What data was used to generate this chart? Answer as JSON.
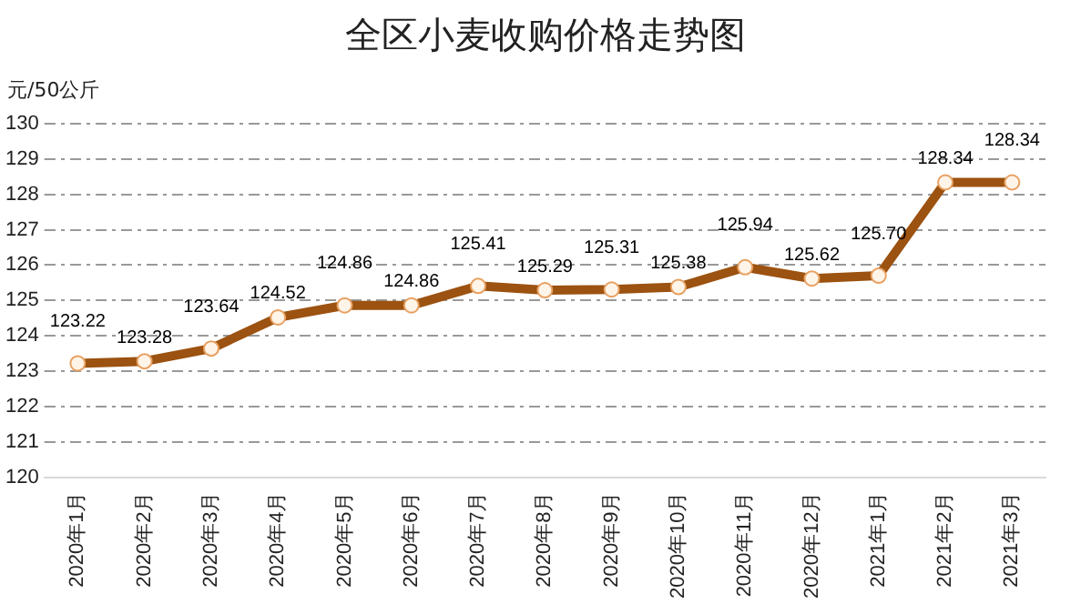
{
  "chart_data": {
    "type": "line",
    "title": "全区小麦收购价格走势图",
    "ylabel": "元/50公斤",
    "categories": [
      "2020年1月",
      "2020年2月",
      "2020年3月",
      "2020年4月",
      "2020年5月",
      "2020年6月",
      "2020年7月",
      "2020年8月",
      "2020年9月",
      "2020年10月",
      "2020年11月",
      "2020年12月",
      "2021年1月",
      "2021年2月",
      "2021年3月"
    ],
    "series": [
      {
        "color": "#9c5210",
        "values": [
          123.22,
          123.28,
          123.64,
          124.52,
          124.86,
          124.86,
          125.41,
          125.29,
          125.31,
          125.38,
          125.94,
          125.62,
          125.7,
          128.34,
          128.34
        ]
      }
    ],
    "ylim": [
      120,
      130
    ],
    "yticks": [
      120,
      121,
      122,
      123,
      124,
      125,
      126,
      127,
      128,
      129,
      130
    ],
    "value_labels": [
      "123.22",
      "123.28",
      "123.64",
      "124.52",
      "124.86",
      "124.86",
      "125.41",
      "125.29",
      "125.31",
      "125.38",
      "125.94",
      "125.62",
      "125.70",
      "128.34",
      "128.34"
    ],
    "grid": "y",
    "marker": "circle",
    "legend": false
  }
}
